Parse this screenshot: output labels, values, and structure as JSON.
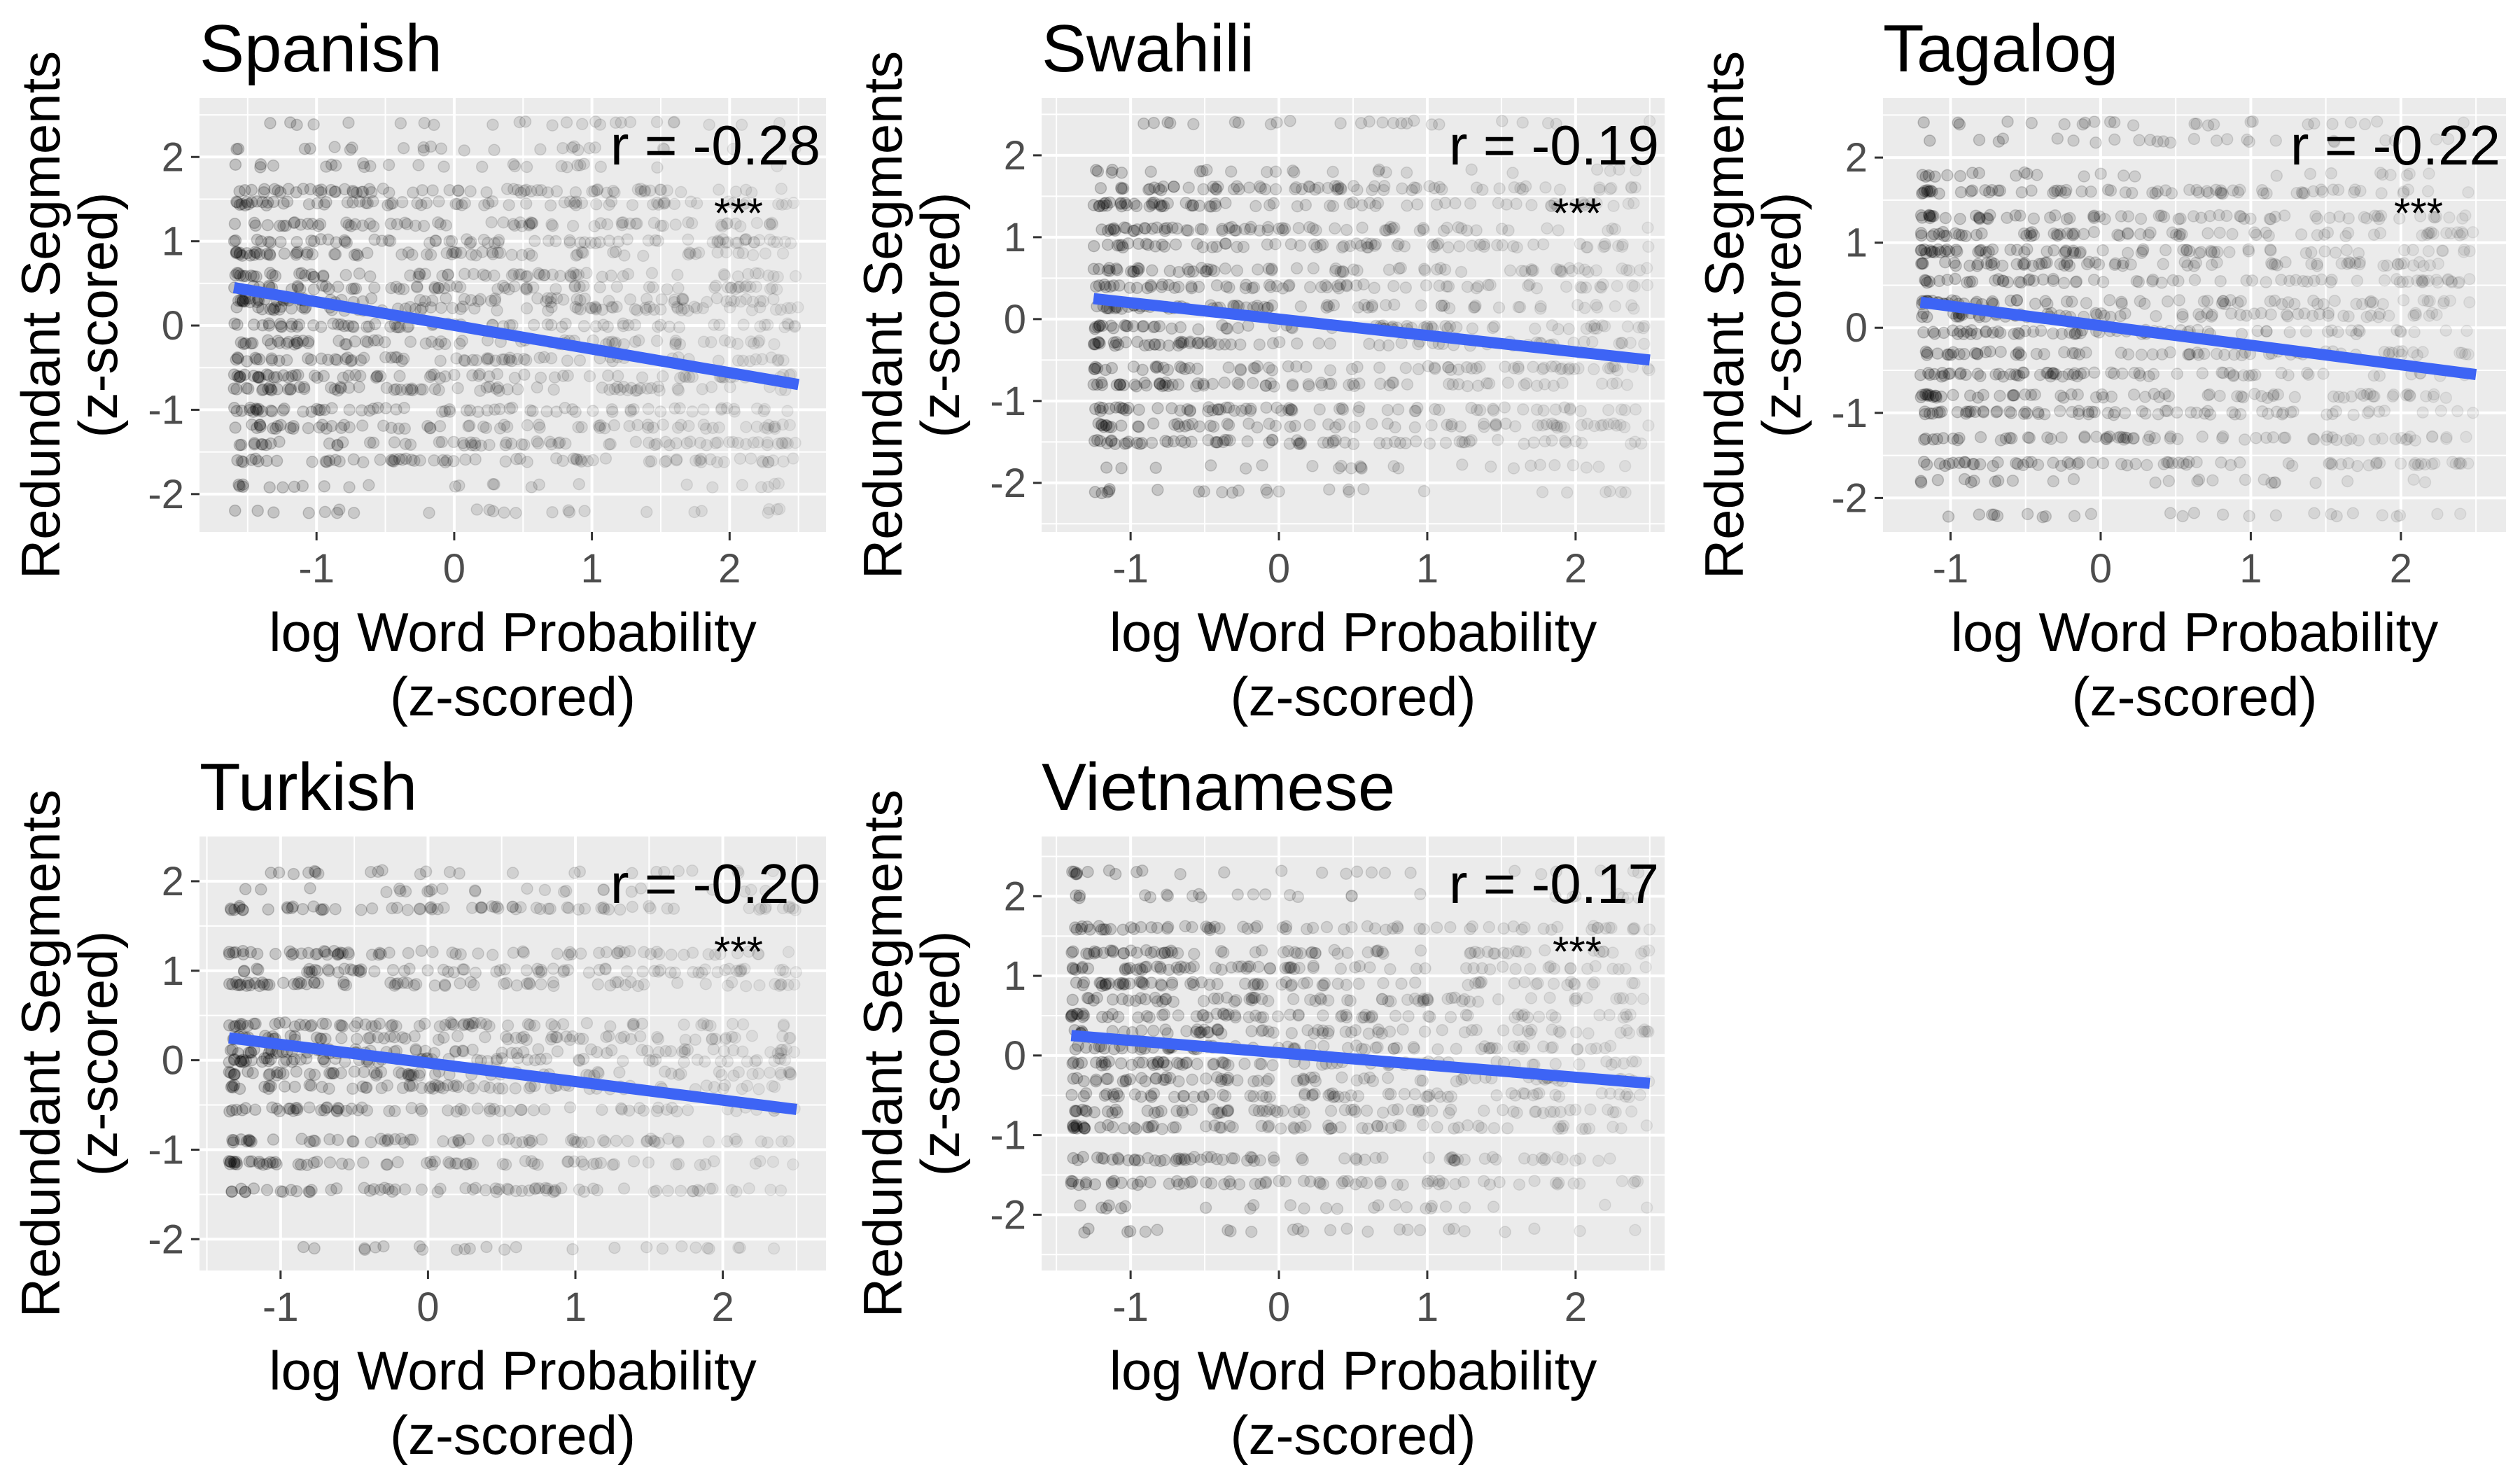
{
  "figure": {
    "xlabel_line1": "log Word Probability",
    "xlabel_line2": "(z-scored)",
    "ylabel_line1": "Redundant Segments",
    "ylabel_line2": "(z-scored)"
  },
  "colors": {
    "panel_bg": "#ebebeb",
    "grid": "#ffffff",
    "points": "#000000",
    "regression_line": "#3d64f5",
    "tick_text": "#4d4d4d"
  },
  "chart_data": [
    {
      "type": "scatter",
      "title": "Spanish",
      "r_label": "r = -0.28",
      "significance": "***",
      "xlim": [
        -1.85,
        2.7
      ],
      "ylim": [
        -2.45,
        2.7
      ],
      "x_ticks": [
        -1,
        0,
        1,
        2
      ],
      "y_ticks": [
        -2,
        -1,
        0,
        1,
        2
      ],
      "x_range": [
        -1.6,
        2.5
      ],
      "y_levels": [
        2.4,
        2.1,
        1.9,
        1.6,
        1.45,
        1.2,
        1.0,
        0.85,
        0.6,
        0.45,
        0.3,
        0.2,
        0.0,
        -0.2,
        -0.4,
        -0.6,
        -0.75,
        -1.0,
        -1.2,
        -1.4,
        -1.6,
        -1.9,
        -2.2
      ],
      "regression": {
        "x": [
          -1.6,
          2.5
        ],
        "y": [
          0.45,
          -0.7
        ]
      },
      "grid": true
    },
    {
      "type": "scatter",
      "title": "Swahili",
      "r_label": "r = -0.19",
      "significance": "***",
      "xlim": [
        -1.6,
        2.6
      ],
      "ylim": [
        -2.6,
        2.7
      ],
      "x_ticks": [
        -1,
        0,
        1,
        2
      ],
      "y_ticks": [
        -2,
        -1,
        0,
        1,
        2
      ],
      "x_range": [
        -1.25,
        2.5
      ],
      "y_levels": [
        2.4,
        1.8,
        1.6,
        1.4,
        1.1,
        0.9,
        0.6,
        0.4,
        0.15,
        -0.1,
        -0.3,
        -0.6,
        -0.8,
        -1.1,
        -1.3,
        -1.5,
        -1.8,
        -2.1
      ],
      "regression": {
        "x": [
          -1.25,
          2.5
        ],
        "y": [
          0.25,
          -0.5
        ]
      },
      "grid": true
    },
    {
      "type": "scatter",
      "title": "Tagalog",
      "r_label": "r = -0.22",
      "significance": "***",
      "xlim": [
        -1.45,
        2.7
      ],
      "ylim": [
        -2.4,
        2.7
      ],
      "x_ticks": [
        -1,
        0,
        1,
        2
      ],
      "y_ticks": [
        -2,
        -1,
        0,
        1,
        2
      ],
      "x_range": [
        -1.2,
        2.5
      ],
      "y_levels": [
        2.4,
        2.2,
        1.8,
        1.6,
        1.3,
        1.1,
        0.9,
        0.75,
        0.55,
        0.3,
        0.15,
        -0.05,
        -0.3,
        -0.55,
        -0.8,
        -1.0,
        -1.3,
        -1.6,
        -1.8,
        -2.2
      ],
      "regression": {
        "x": [
          -1.2,
          2.5
        ],
        "y": [
          0.3,
          -0.55
        ]
      },
      "grid": true
    },
    {
      "type": "scatter",
      "title": "Turkish",
      "r_label": "r = -0.20",
      "significance": "***",
      "xlim": [
        -1.55,
        2.7
      ],
      "ylim": [
        -2.35,
        2.5
      ],
      "x_ticks": [
        -1,
        0,
        1,
        2
      ],
      "y_ticks": [
        -2,
        -1,
        0,
        1,
        2
      ],
      "x_range": [
        -1.35,
        2.5
      ],
      "y_levels": [
        2.1,
        1.9,
        1.7,
        1.2,
        1.0,
        0.85,
        0.4,
        0.25,
        0.1,
        0.0,
        -0.15,
        -0.3,
        -0.55,
        -0.9,
        -1.15,
        -1.45,
        -2.1
      ],
      "regression": {
        "x": [
          -1.35,
          2.5
        ],
        "y": [
          0.25,
          -0.55
        ]
      },
      "grid": true
    },
    {
      "type": "scatter",
      "title": "Vietnamese",
      "r_label": "r = -0.17",
      "significance": "***",
      "xlim": [
        -1.6,
        2.6
      ],
      "ylim": [
        -2.7,
        2.75
      ],
      "x_ticks": [
        -1,
        0,
        1,
        2
      ],
      "y_ticks": [
        -2,
        -1,
        0,
        1,
        2
      ],
      "x_range": [
        -1.4,
        2.5
      ],
      "y_levels": [
        2.3,
        2.0,
        1.6,
        1.3,
        1.1,
        0.9,
        0.7,
        0.5,
        0.3,
        0.1,
        -0.1,
        -0.3,
        -0.5,
        -0.7,
        -0.9,
        -1.3,
        -1.6,
        -1.9,
        -2.2
      ],
      "regression": {
        "x": [
          -1.4,
          2.5
        ],
        "y": [
          0.25,
          -0.35
        ]
      },
      "grid": true
    }
  ]
}
